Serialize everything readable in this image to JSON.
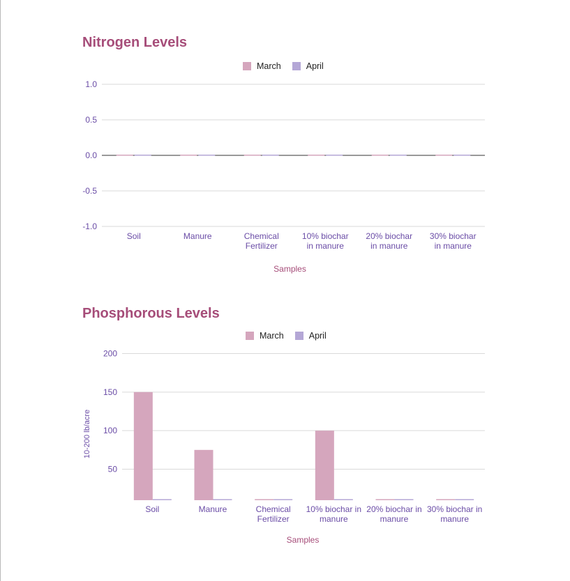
{
  "colors": {
    "march": "#d5a6bd",
    "april": "#b4a7d6",
    "title": "#a64d79",
    "tick": "#6a4ca6"
  },
  "chart_data": [
    {
      "type": "bar",
      "title": "Nitrogen Levels",
      "xlabel": "Samples",
      "ylabel": "",
      "legend_position": "top",
      "grid": true,
      "ylim": [
        -1.0,
        1.0
      ],
      "yticks": [
        "1.0",
        "0.5",
        "0.0",
        "-0.5",
        "-1.0"
      ],
      "categories": [
        [
          "Soil"
        ],
        [
          "Manure"
        ],
        [
          "Chemical",
          "Fertilizer"
        ],
        [
          "10% biochar",
          "in manure"
        ],
        [
          "20% biochar",
          "in manure"
        ],
        [
          "30% biochar",
          "in manure"
        ]
      ],
      "series": [
        {
          "name": "March",
          "values": [
            0,
            0,
            0,
            0,
            0,
            0
          ]
        },
        {
          "name": "April",
          "values": [
            0,
            0,
            0,
            0,
            0,
            0
          ]
        }
      ]
    },
    {
      "type": "bar",
      "title": "Phosphorous Levels",
      "xlabel": "Samples",
      "ylabel": "10-200 lb/acre",
      "legend_position": "top",
      "grid": true,
      "ylim": [
        10,
        200
      ],
      "yticks": [
        "200",
        "150",
        "100",
        "50"
      ],
      "categories": [
        [
          "Soil"
        ],
        [
          "Manure"
        ],
        [
          "Chemical",
          "Fertilizer"
        ],
        [
          "10% biochar in",
          "manure"
        ],
        [
          "20% biochar in",
          "manure"
        ],
        [
          "30% biochar in",
          "manure"
        ]
      ],
      "series": [
        {
          "name": "March",
          "values": [
            150,
            75,
            0,
            100,
            0,
            0
          ]
        },
        {
          "name": "April",
          "values": [
            0,
            0,
            0,
            0,
            0,
            0
          ]
        }
      ]
    }
  ]
}
